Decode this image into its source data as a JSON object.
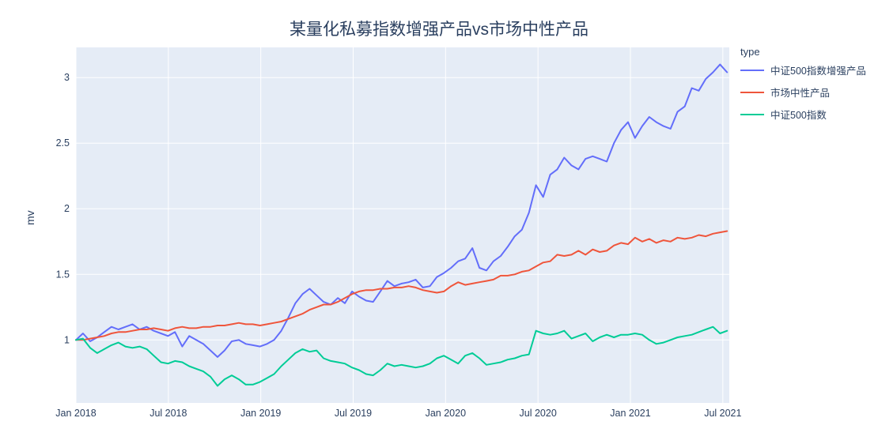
{
  "chart_data": {
    "type": "line",
    "title": "某量化私募指数增强产品vs市场中性产品",
    "xlabel": "",
    "ylabel": "mv",
    "legend_title": "type",
    "legend_position": "right",
    "grid": true,
    "plot_bg_color": "#E5ECF6",
    "grid_color": "#FFFFFF",
    "text_color": "#2A3F5F",
    "x_tick_labels": [
      "Jan 2018",
      "Jul 2018",
      "Jan 2019",
      "Jul 2019",
      "Jan 2020",
      "Jul 2020",
      "Jan 2021",
      "Jul 2021"
    ],
    "x_tick_years": [
      2018.0,
      2018.5,
      2019.0,
      2019.5,
      2020.0,
      2020.5,
      2021.0,
      2021.5
    ],
    "y_ticks": [
      1,
      1.5,
      2,
      2.5,
      3
    ],
    "x_range": [
      2018.0,
      2021.535
    ],
    "y_range": [
      0.52,
      3.23
    ],
    "x_years": [
      2018.0,
      2018.038,
      2018.077,
      2018.115,
      2018.153,
      2018.192,
      2018.23,
      2018.268,
      2018.306,
      2018.345,
      2018.383,
      2018.421,
      2018.46,
      2018.498,
      2018.536,
      2018.575,
      2018.613,
      2018.651,
      2018.689,
      2018.728,
      2018.766,
      2018.804,
      2018.843,
      2018.881,
      2018.919,
      2018.957,
      2018.996,
      2019.034,
      2019.072,
      2019.111,
      2019.149,
      2019.187,
      2019.226,
      2019.264,
      2019.302,
      2019.34,
      2019.379,
      2019.417,
      2019.455,
      2019.494,
      2019.532,
      2019.57,
      2019.608,
      2019.647,
      2019.685,
      2019.723,
      2019.762,
      2019.8,
      2019.838,
      2019.877,
      2019.915,
      2019.953,
      2019.991,
      2020.03,
      2020.068,
      2020.106,
      2020.145,
      2020.183,
      2020.221,
      2020.259,
      2020.298,
      2020.336,
      2020.374,
      2020.413,
      2020.451,
      2020.489,
      2020.528,
      2020.566,
      2020.604,
      2020.642,
      2020.681,
      2020.719,
      2020.757,
      2020.796,
      2020.834,
      2020.872,
      2020.911,
      2020.949,
      2020.987,
      2021.025,
      2021.064,
      2021.102,
      2021.14,
      2021.179,
      2021.217,
      2021.255,
      2021.294,
      2021.332,
      2021.37,
      2021.408,
      2021.447,
      2021.485,
      2021.523
    ],
    "series": [
      {
        "name": "中证500指数增强产品",
        "color": "#636EFA",
        "values": [
          1.0,
          1.05,
          0.99,
          1.02,
          1.06,
          1.1,
          1.08,
          1.1,
          1.12,
          1.08,
          1.1,
          1.07,
          1.05,
          1.03,
          1.06,
          0.95,
          1.03,
          1.0,
          0.97,
          0.92,
          0.87,
          0.92,
          0.99,
          1.0,
          0.97,
          0.96,
          0.95,
          0.97,
          1.0,
          1.07,
          1.17,
          1.28,
          1.35,
          1.39,
          1.34,
          1.29,
          1.27,
          1.32,
          1.28,
          1.37,
          1.33,
          1.3,
          1.29,
          1.37,
          1.45,
          1.41,
          1.43,
          1.44,
          1.46,
          1.4,
          1.41,
          1.48,
          1.51,
          1.55,
          1.6,
          1.62,
          1.7,
          1.55,
          1.53,
          1.6,
          1.64,
          1.71,
          1.79,
          1.84,
          1.97,
          2.18,
          2.09,
          2.26,
          2.3,
          2.39,
          2.33,
          2.3,
          2.38,
          2.4,
          2.38,
          2.36,
          2.5,
          2.6,
          2.66,
          2.54,
          2.63,
          2.7,
          2.66,
          2.63,
          2.61,
          2.74,
          2.78,
          2.92,
          2.9,
          2.99,
          3.04,
          3.1,
          3.04
        ]
      },
      {
        "name": "市场中性产品",
        "color": "#EF553B",
        "values": [
          1.0,
          1.0,
          1.01,
          1.02,
          1.03,
          1.05,
          1.06,
          1.06,
          1.07,
          1.08,
          1.08,
          1.09,
          1.08,
          1.07,
          1.09,
          1.1,
          1.09,
          1.09,
          1.1,
          1.1,
          1.11,
          1.11,
          1.12,
          1.13,
          1.12,
          1.12,
          1.11,
          1.12,
          1.13,
          1.14,
          1.16,
          1.18,
          1.2,
          1.23,
          1.25,
          1.27,
          1.27,
          1.29,
          1.32,
          1.35,
          1.37,
          1.38,
          1.38,
          1.39,
          1.39,
          1.4,
          1.4,
          1.41,
          1.4,
          1.38,
          1.37,
          1.36,
          1.37,
          1.41,
          1.44,
          1.42,
          1.43,
          1.44,
          1.45,
          1.46,
          1.49,
          1.49,
          1.5,
          1.52,
          1.53,
          1.56,
          1.59,
          1.6,
          1.65,
          1.64,
          1.65,
          1.68,
          1.65,
          1.69,
          1.67,
          1.68,
          1.72,
          1.74,
          1.73,
          1.78,
          1.75,
          1.77,
          1.74,
          1.76,
          1.75,
          1.78,
          1.77,
          1.78,
          1.8,
          1.79,
          1.81,
          1.82,
          1.83
        ]
      },
      {
        "name": "中证500指数",
        "color": "#00CC96",
        "values": [
          1.0,
          1.01,
          0.94,
          0.9,
          0.93,
          0.96,
          0.98,
          0.95,
          0.94,
          0.95,
          0.93,
          0.88,
          0.83,
          0.82,
          0.84,
          0.83,
          0.8,
          0.78,
          0.76,
          0.72,
          0.65,
          0.7,
          0.73,
          0.7,
          0.66,
          0.66,
          0.68,
          0.71,
          0.74,
          0.8,
          0.85,
          0.9,
          0.93,
          0.91,
          0.92,
          0.86,
          0.84,
          0.83,
          0.82,
          0.79,
          0.77,
          0.74,
          0.73,
          0.77,
          0.82,
          0.8,
          0.81,
          0.8,
          0.79,
          0.8,
          0.82,
          0.86,
          0.88,
          0.85,
          0.82,
          0.88,
          0.9,
          0.86,
          0.81,
          0.82,
          0.83,
          0.85,
          0.86,
          0.88,
          0.89,
          1.07,
          1.05,
          1.04,
          1.05,
          1.07,
          1.01,
          1.03,
          1.05,
          0.99,
          1.02,
          1.04,
          1.02,
          1.04,
          1.04,
          1.05,
          1.04,
          1.0,
          0.97,
          0.98,
          1.0,
          1.02,
          1.03,
          1.04,
          1.06,
          1.08,
          1.1,
          1.05,
          1.07
        ]
      }
    ]
  }
}
